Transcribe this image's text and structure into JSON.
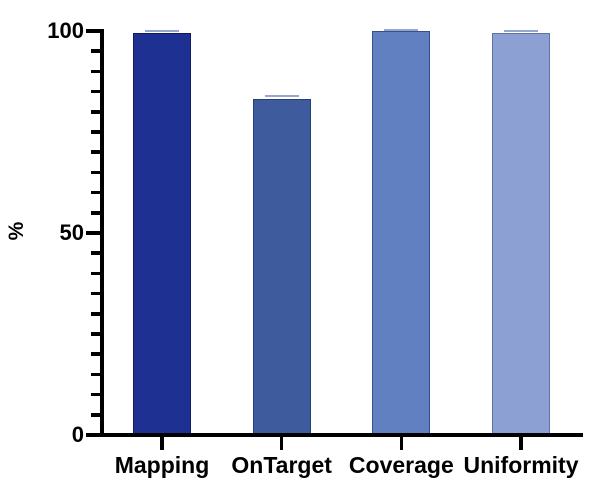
{
  "figure": {
    "background": "#ffffff",
    "axis_color": "#000000",
    "text_color": "#000000"
  },
  "chart_data": {
    "type": "bar",
    "title": "",
    "categories": [
      "Mapping",
      "OnTarget",
      "Coverage",
      "Uniformity"
    ],
    "values": [
      99.6,
      83.1,
      100,
      99.4
    ],
    "errors": [
      0.4,
      0.7,
      0.3,
      0.5
    ],
    "bar_colors": [
      "#1e3193",
      "#3d5b9d",
      "#6080c1",
      "#8ca0d3"
    ],
    "bar_border_colors": [
      "#131c5e",
      "#28406f",
      "#35508a",
      "#5c74a8"
    ],
    "error_cap_color": "#96a6cd",
    "xlabel": "",
    "ylabel": "%",
    "ylim": [
      0,
      100
    ],
    "yticks_major": [
      0,
      50,
      100
    ],
    "ytick_labels": [
      "0",
      "50",
      "100"
    ],
    "minor_tick_step": 5,
    "grid": false,
    "legend_position": "none"
  }
}
